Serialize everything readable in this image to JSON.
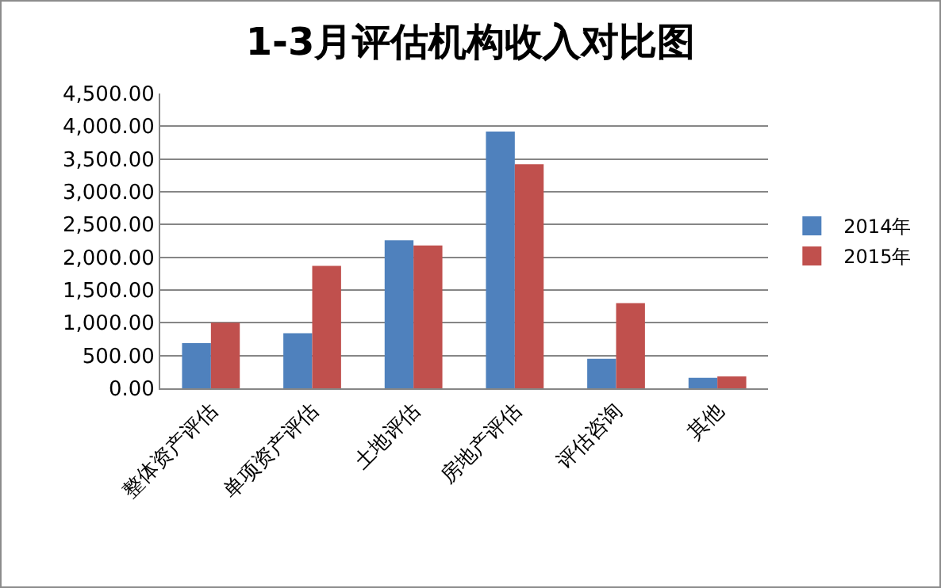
{
  "chart_data": {
    "type": "bar",
    "title": "1-3月评估机构收入对比图",
    "categories": [
      "整体资产评估",
      "单项资产评估",
      "土地评估",
      "房地产评估",
      "评估咨询",
      "其他"
    ],
    "series": [
      {
        "name": "2014年",
        "color": "#4f81bd",
        "values": [
          690,
          840,
          2260,
          3920,
          450,
          160
        ]
      },
      {
        "name": "2015年",
        "color": "#c0504d",
        "values": [
          1000,
          1870,
          2180,
          3420,
          1300,
          180
        ]
      }
    ],
    "ylim": [
      0,
      4500
    ],
    "yticks": [
      {
        "value": 0,
        "label": "0.00"
      },
      {
        "value": 500,
        "label": "500.00"
      },
      {
        "value": 1000,
        "label": "1,000.00"
      },
      {
        "value": 1500,
        "label": "1,500.00"
      },
      {
        "value": 2000,
        "label": "2,000.00"
      },
      {
        "value": 2500,
        "label": "2,500.00"
      },
      {
        "value": 3000,
        "label": "3,000.00"
      },
      {
        "value": 3500,
        "label": "3,500.00"
      },
      {
        "value": 4000,
        "label": "4,000.00"
      },
      {
        "value": 4500,
        "label": "4,500.00"
      }
    ],
    "grid": "y",
    "legend": "right"
  }
}
